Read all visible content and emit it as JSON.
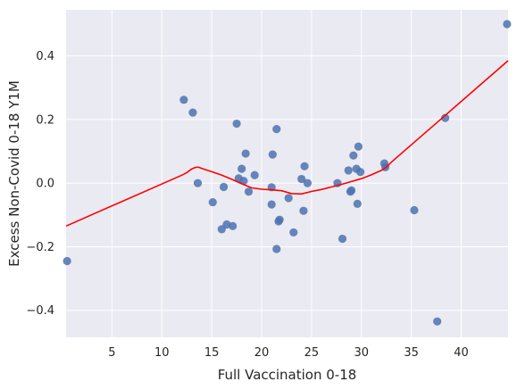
{
  "chart_data": {
    "type": "scatter",
    "xlabel": "Full Vaccination 0-18",
    "ylabel": "Excess Non-Covid 0-18 Y1M",
    "xlim": [
      0.4,
      44.7
    ],
    "ylim": [
      -0.485,
      0.545
    ],
    "xticks": [
      5,
      10,
      15,
      20,
      25,
      30,
      35,
      40
    ],
    "yticks": [
      -0.4,
      -0.2,
      0.0,
      0.2,
      0.4
    ],
    "xtick_labels": [
      "5",
      "10",
      "15",
      "20",
      "25",
      "30",
      "35",
      "40"
    ],
    "ytick_labels": [
      "−0.4",
      "−0.2",
      "0.0",
      "0.2",
      "0.4"
    ],
    "grid": true,
    "background": "#eaeaf2",
    "point_color": "#4c72b0",
    "line_color": "#ff0000",
    "points": [
      {
        "x": 0.5,
        "y": -0.245
      },
      {
        "x": 12.2,
        "y": 0.262
      },
      {
        "x": 13.1,
        "y": 0.222
      },
      {
        "x": 13.6,
        "y": 0.0
      },
      {
        "x": 15.1,
        "y": -0.06
      },
      {
        "x": 16.0,
        "y": -0.145
      },
      {
        "x": 16.2,
        "y": -0.012
      },
      {
        "x": 16.5,
        "y": -0.13
      },
      {
        "x": 17.1,
        "y": -0.135
      },
      {
        "x": 17.5,
        "y": 0.187
      },
      {
        "x": 17.7,
        "y": 0.015
      },
      {
        "x": 18.0,
        "y": 0.045
      },
      {
        "x": 18.2,
        "y": 0.007
      },
      {
        "x": 18.4,
        "y": 0.093
      },
      {
        "x": 18.7,
        "y": -0.027
      },
      {
        "x": 19.3,
        "y": 0.025
      },
      {
        "x": 21.0,
        "y": -0.013
      },
      {
        "x": 21.0,
        "y": -0.067
      },
      {
        "x": 21.1,
        "y": 0.09
      },
      {
        "x": 21.5,
        "y": 0.17
      },
      {
        "x": 21.5,
        "y": -0.207
      },
      {
        "x": 21.7,
        "y": -0.12
      },
      {
        "x": 21.8,
        "y": -0.115
      },
      {
        "x": 22.7,
        "y": -0.047
      },
      {
        "x": 23.2,
        "y": -0.155
      },
      {
        "x": 24.0,
        "y": 0.013
      },
      {
        "x": 24.2,
        "y": -0.087
      },
      {
        "x": 24.3,
        "y": 0.053
      },
      {
        "x": 24.6,
        "y": 0.0
      },
      {
        "x": 27.6,
        "y": 0.0
      },
      {
        "x": 28.1,
        "y": -0.175
      },
      {
        "x": 28.7,
        "y": 0.04
      },
      {
        "x": 28.9,
        "y": -0.027
      },
      {
        "x": 29.0,
        "y": -0.023
      },
      {
        "x": 29.2,
        "y": 0.087
      },
      {
        "x": 29.5,
        "y": 0.045
      },
      {
        "x": 29.6,
        "y": -0.065
      },
      {
        "x": 29.7,
        "y": 0.115
      },
      {
        "x": 29.9,
        "y": 0.035
      },
      {
        "x": 32.3,
        "y": 0.062
      },
      {
        "x": 32.4,
        "y": 0.05
      },
      {
        "x": 35.3,
        "y": -0.085
      },
      {
        "x": 37.6,
        "y": -0.435
      },
      {
        "x": 38.4,
        "y": 0.205
      },
      {
        "x": 44.6,
        "y": 0.5
      }
    ],
    "trend_line": {
      "x": [
        0.4,
        12.0,
        12.5,
        13.0,
        13.4,
        13.7,
        14.0,
        15.0,
        16.0,
        17.0,
        18.0,
        19.0,
        20.0,
        21.0,
        22.0,
        23.0,
        24.0,
        25.0,
        26.0,
        27.0,
        28.0,
        29.0,
        30.0,
        31.0,
        32.0,
        32.5,
        33.0,
        38.0,
        44.7
      ],
      "y": [
        -0.135,
        0.025,
        0.033,
        0.045,
        0.05,
        0.05,
        0.046,
        0.036,
        0.025,
        0.012,
        -0.002,
        -0.015,
        -0.019,
        -0.021,
        -0.024,
        -0.033,
        -0.034,
        -0.026,
        -0.02,
        -0.012,
        -0.004,
        0.005,
        0.014,
        0.026,
        0.04,
        0.05,
        0.066,
        0.202,
        0.385
      ]
    }
  }
}
